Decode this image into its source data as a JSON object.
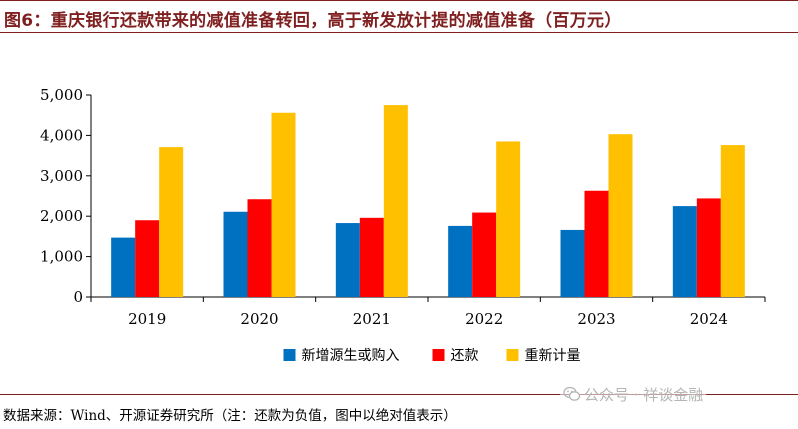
{
  "header": {
    "title": "图6：重庆银行还款带来的减值准备转回，高于新发放计提的减值准备（百万元）"
  },
  "chart_data": {
    "type": "bar",
    "title": "重庆银行还款带来的减值准备转回，高于新发放计提的减值准备（百万元）",
    "xlabel": "",
    "ylabel": "",
    "ylim": [
      0,
      5000
    ],
    "yticks": [
      0,
      1000,
      2000,
      3000,
      4000,
      5000
    ],
    "ytick_labels": [
      "0",
      "1,000",
      "2,000",
      "3,000",
      "4,000",
      "5,000"
    ],
    "grid": false,
    "legend_position": "bottom",
    "categories": [
      "2019",
      "2020",
      "2021",
      "2022",
      "2023",
      "2024"
    ],
    "series": [
      {
        "name": "新增源生或购入",
        "color": "#0070c0",
        "values": [
          1470,
          2110,
          1830,
          1760,
          1660,
          2250
        ]
      },
      {
        "name": "还款",
        "color": "#ff0000",
        "values": [
          1900,
          2420,
          1960,
          2090,
          2630,
          2440
        ]
      },
      {
        "name": "重新计量",
        "color": "#ffc000",
        "values": [
          3710,
          4560,
          4750,
          3850,
          4030,
          3760
        ]
      }
    ]
  },
  "footer": {
    "source": "数据来源：Wind、开源证券研究所（注：还款为负值，图中以绝对值表示）",
    "watermark": "公众号 · 祥谈金融",
    "watermark_icon": "wechat-icon"
  }
}
